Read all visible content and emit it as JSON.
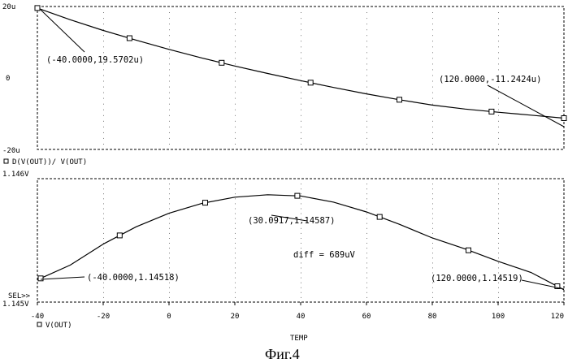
{
  "chart_data": [
    {
      "type": "line",
      "legend": "D(V(OUT))/ V(OUT)",
      "y_tick_labels": [
        "20u",
        "0",
        "-20u"
      ],
      "ylim": [
        -2e-05,
        2e-05
      ],
      "xlim": [
        -40,
        120
      ],
      "grid": true,
      "series": [
        {
          "x": [
            -40,
            -30,
            -20,
            -10,
            0,
            10,
            20,
            30,
            40,
            50,
            60,
            70,
            80,
            90,
            100,
            110,
            120
          ],
          "values": [
            1.957e-05,
            1.63e-05,
            1.33e-05,
            1.06e-05,
            8e-06,
            5.6e-06,
            3.35e-06,
            1.25e-06,
            -7.5e-07,
            -2.65e-06,
            -4.45e-06,
            -6.1e-06,
            -7.6e-06,
            -8.7e-06,
            -9.6e-06,
            -1.04e-05,
            -1.124e-05
          ]
        }
      ],
      "markers_x": [
        -40,
        -12,
        16,
        43,
        70,
        98,
        120
      ],
      "annotations": [
        {
          "text": "(-40.0000,19.5702u)",
          "x": -40,
          "y": 1.95702e-05
        },
        {
          "text": "(120.0000,-11.2424u)",
          "x": 120,
          "y": -1.12424e-05
        }
      ]
    },
    {
      "type": "line",
      "legend": "V(OUT)",
      "y_tick_labels": [
        "1.146V",
        "1.145V"
      ],
      "ylim": [
        1.145,
        1.146
      ],
      "xlim": [
        -40,
        120
      ],
      "grid": true,
      "series": [
        {
          "x": [
            -40,
            -30,
            -20,
            -10,
            0,
            10,
            20,
            30,
            40,
            50,
            60,
            70,
            80,
            90,
            100,
            110,
            120
          ],
          "values": [
            1.14518,
            1.1453,
            1.14547,
            1.14561,
            1.14572,
            1.1458,
            1.14585,
            1.14587,
            1.14586,
            1.14581,
            1.14573,
            1.14563,
            1.14552,
            1.14543,
            1.14533,
            1.14524,
            1.1451
          ]
        }
      ],
      "markers_x": [
        -39,
        -15,
        11,
        39,
        64,
        91,
        118
      ],
      "annotations": [
        {
          "text": "(30.0917,1.14587)",
          "x": 30.0917,
          "y": 1.14587
        },
        {
          "text": "(-40.0000,1.14518)",
          "x": -40,
          "y": 1.14518
        },
        {
          "text": "(120.0000,1.14519)",
          "x": 120,
          "y": 1.14519
        },
        {
          "text": "diff = 689uV"
        }
      ],
      "sel_label": "SEL>>"
    }
  ],
  "x_axis": {
    "label": "TEMP",
    "tick_labels": [
      "-40",
      "-20",
      "0",
      "20",
      "40",
      "60",
      "80",
      "100",
      "120"
    ],
    "ticks": [
      -40,
      -20,
      0,
      20,
      40,
      60,
      80,
      100,
      120
    ]
  },
  "caption": "Фиг.4"
}
